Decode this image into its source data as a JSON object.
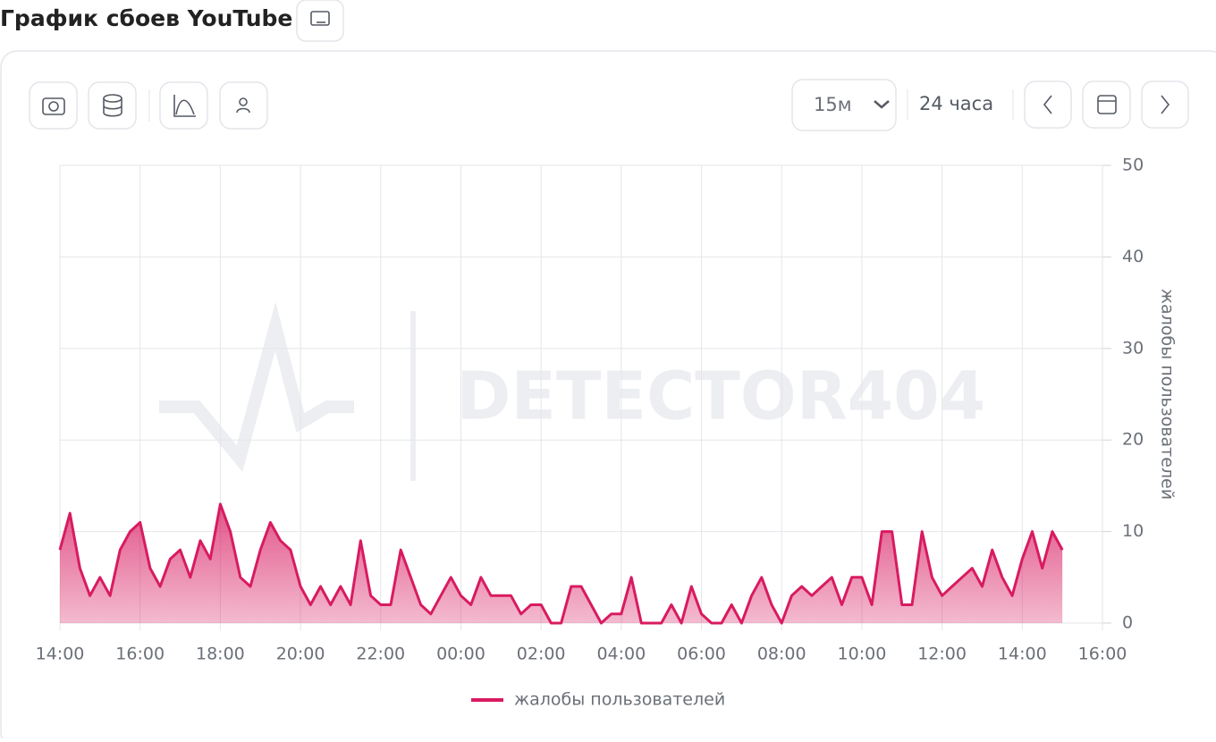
{
  "header": {
    "title": "График сбоев YouTube"
  },
  "toolbar": {
    "interval": "15м",
    "range": "24 часа"
  },
  "chart_data": {
    "type": "line",
    "watermark": "DETECTOR404",
    "y_label": "жалобы пользователей",
    "x": [
      0,
      0.25,
      0.5,
      0.75,
      1,
      1.25,
      1.5,
      1.75,
      2,
      2.25,
      2.5,
      2.75,
      3,
      3.25,
      3.5,
      3.75,
      4,
      4.25,
      4.5,
      4.75,
      5,
      5.25,
      5.5,
      5.75,
      6,
      6.25,
      6.5,
      6.75,
      7,
      7.25,
      7.5,
      7.75,
      8,
      8.25,
      8.5,
      8.75,
      9,
      9.25,
      9.5,
      9.75,
      10,
      10.25,
      10.5,
      10.75,
      11,
      11.25,
      11.5,
      11.75,
      12,
      12.25,
      12.5,
      12.75,
      13,
      13.25,
      13.5,
      13.75,
      14,
      14.25,
      14.5,
      14.75,
      15,
      15.25,
      15.5,
      15.75,
      16,
      16.25,
      16.5,
      16.75,
      17,
      17.25,
      17.5,
      17.75,
      18,
      18.25,
      18.5,
      18.75,
      19,
      19.25,
      19.5,
      19.75,
      20,
      20.25,
      20.5,
      20.75,
      21,
      21.25,
      21.5,
      21.75,
      22,
      22.25,
      22.5,
      22.75,
      23,
      23.25,
      23.5,
      23.75,
      24,
      24.25,
      24.5,
      24.75,
      25
    ],
    "series": [
      {
        "name": "жалобы пользователей",
        "color": "#d81b60",
        "values": [
          8,
          12,
          6,
          3,
          5,
          3,
          8,
          10,
          11,
          6,
          4,
          7,
          8,
          5,
          9,
          7,
          13,
          10,
          5,
          4,
          8,
          11,
          9,
          8,
          4,
          2,
          4,
          2,
          4,
          2,
          9,
          3,
          2,
          2,
          8,
          5,
          2,
          1,
          3,
          5,
          3,
          2,
          5,
          3,
          3,
          3,
          1,
          2,
          2,
          0,
          0,
          4,
          4,
          2,
          0,
          1,
          1,
          5,
          0,
          0,
          0,
          2,
          0,
          4,
          1,
          0,
          0,
          2,
          0,
          3,
          5,
          2,
          0,
          3,
          4,
          3,
          4,
          5,
          2,
          5,
          5,
          2,
          10,
          10,
          2,
          2,
          10,
          5,
          3,
          4,
          5,
          6,
          4,
          8,
          5,
          3,
          7,
          10,
          6,
          10,
          8
        ]
      }
    ],
    "xlim": [
      0,
      26
    ],
    "xticks": [
      {
        "value": 0,
        "label": "14:00"
      },
      {
        "value": 2,
        "label": "16:00"
      },
      {
        "value": 4,
        "label": "18:00"
      },
      {
        "value": 6,
        "label": "20:00"
      },
      {
        "value": 8,
        "label": "22:00"
      },
      {
        "value": 10,
        "label": "00:00"
      },
      {
        "value": 12,
        "label": "02:00"
      },
      {
        "value": 14,
        "label": "04:00"
      },
      {
        "value": 16,
        "label": "06:00"
      },
      {
        "value": 18,
        "label": "08:00"
      },
      {
        "value": 20,
        "label": "10:00"
      },
      {
        "value": 22,
        "label": "12:00"
      },
      {
        "value": 24,
        "label": "14:00"
      },
      {
        "value": 26,
        "label": "16:00"
      }
    ],
    "ylim": [
      0,
      50
    ],
    "yticks": [
      0,
      10,
      20,
      30,
      40,
      50
    ],
    "grid": true
  }
}
